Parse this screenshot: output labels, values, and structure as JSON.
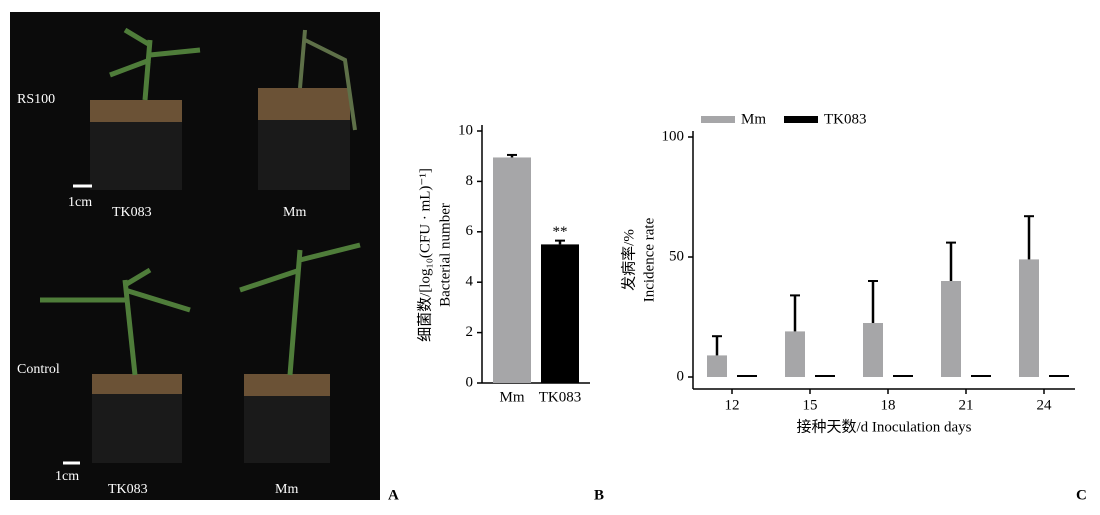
{
  "photo": {
    "labels": [
      "RS100",
      "Control"
    ],
    "scale_bars": [
      "1cm",
      "1cm"
    ],
    "top_plants": [
      "TK083",
      "Mm"
    ],
    "bottom_plants": [
      "TK083",
      "Mm"
    ]
  },
  "panel_labels": [
    "A",
    "B",
    "C"
  ],
  "chart_data": [
    {
      "type": "bar",
      "categories": [
        "Mm",
        "TK083"
      ],
      "values": [
        8.95,
        5.5
      ],
      "errors": [
        0.1,
        0.15
      ],
      "colors": [
        "#a6a6a8",
        "#000000"
      ],
      "annotations": [
        null,
        "**"
      ],
      "ylabel": [
        "细菌数/[log₁₀(CFU · mL)⁻¹]",
        "Bacterial number"
      ],
      "ylim": [
        0,
        10
      ],
      "yticks": [
        0,
        2,
        4,
        6,
        8,
        10
      ]
    },
    {
      "type": "bar",
      "categories": [
        "12",
        "15",
        "18",
        "21",
        "24"
      ],
      "series": [
        {
          "name": "Mm",
          "color": "#a6a6a8",
          "values": [
            9,
            19,
            22.5,
            40,
            49
          ],
          "errors": [
            8,
            15,
            17.5,
            16,
            18
          ]
        },
        {
          "name": "TK083",
          "color": "#000000",
          "values": [
            0,
            0,
            0,
            0,
            0
          ]
        }
      ],
      "xlabel": "接种天数/d Inoculation days",
      "ylabel": [
        "发病率/%",
        "Incidence rate"
      ],
      "ylim": [
        -5,
        100
      ],
      "yticks": [
        0,
        50,
        100
      ],
      "legend": "top-left"
    }
  ]
}
